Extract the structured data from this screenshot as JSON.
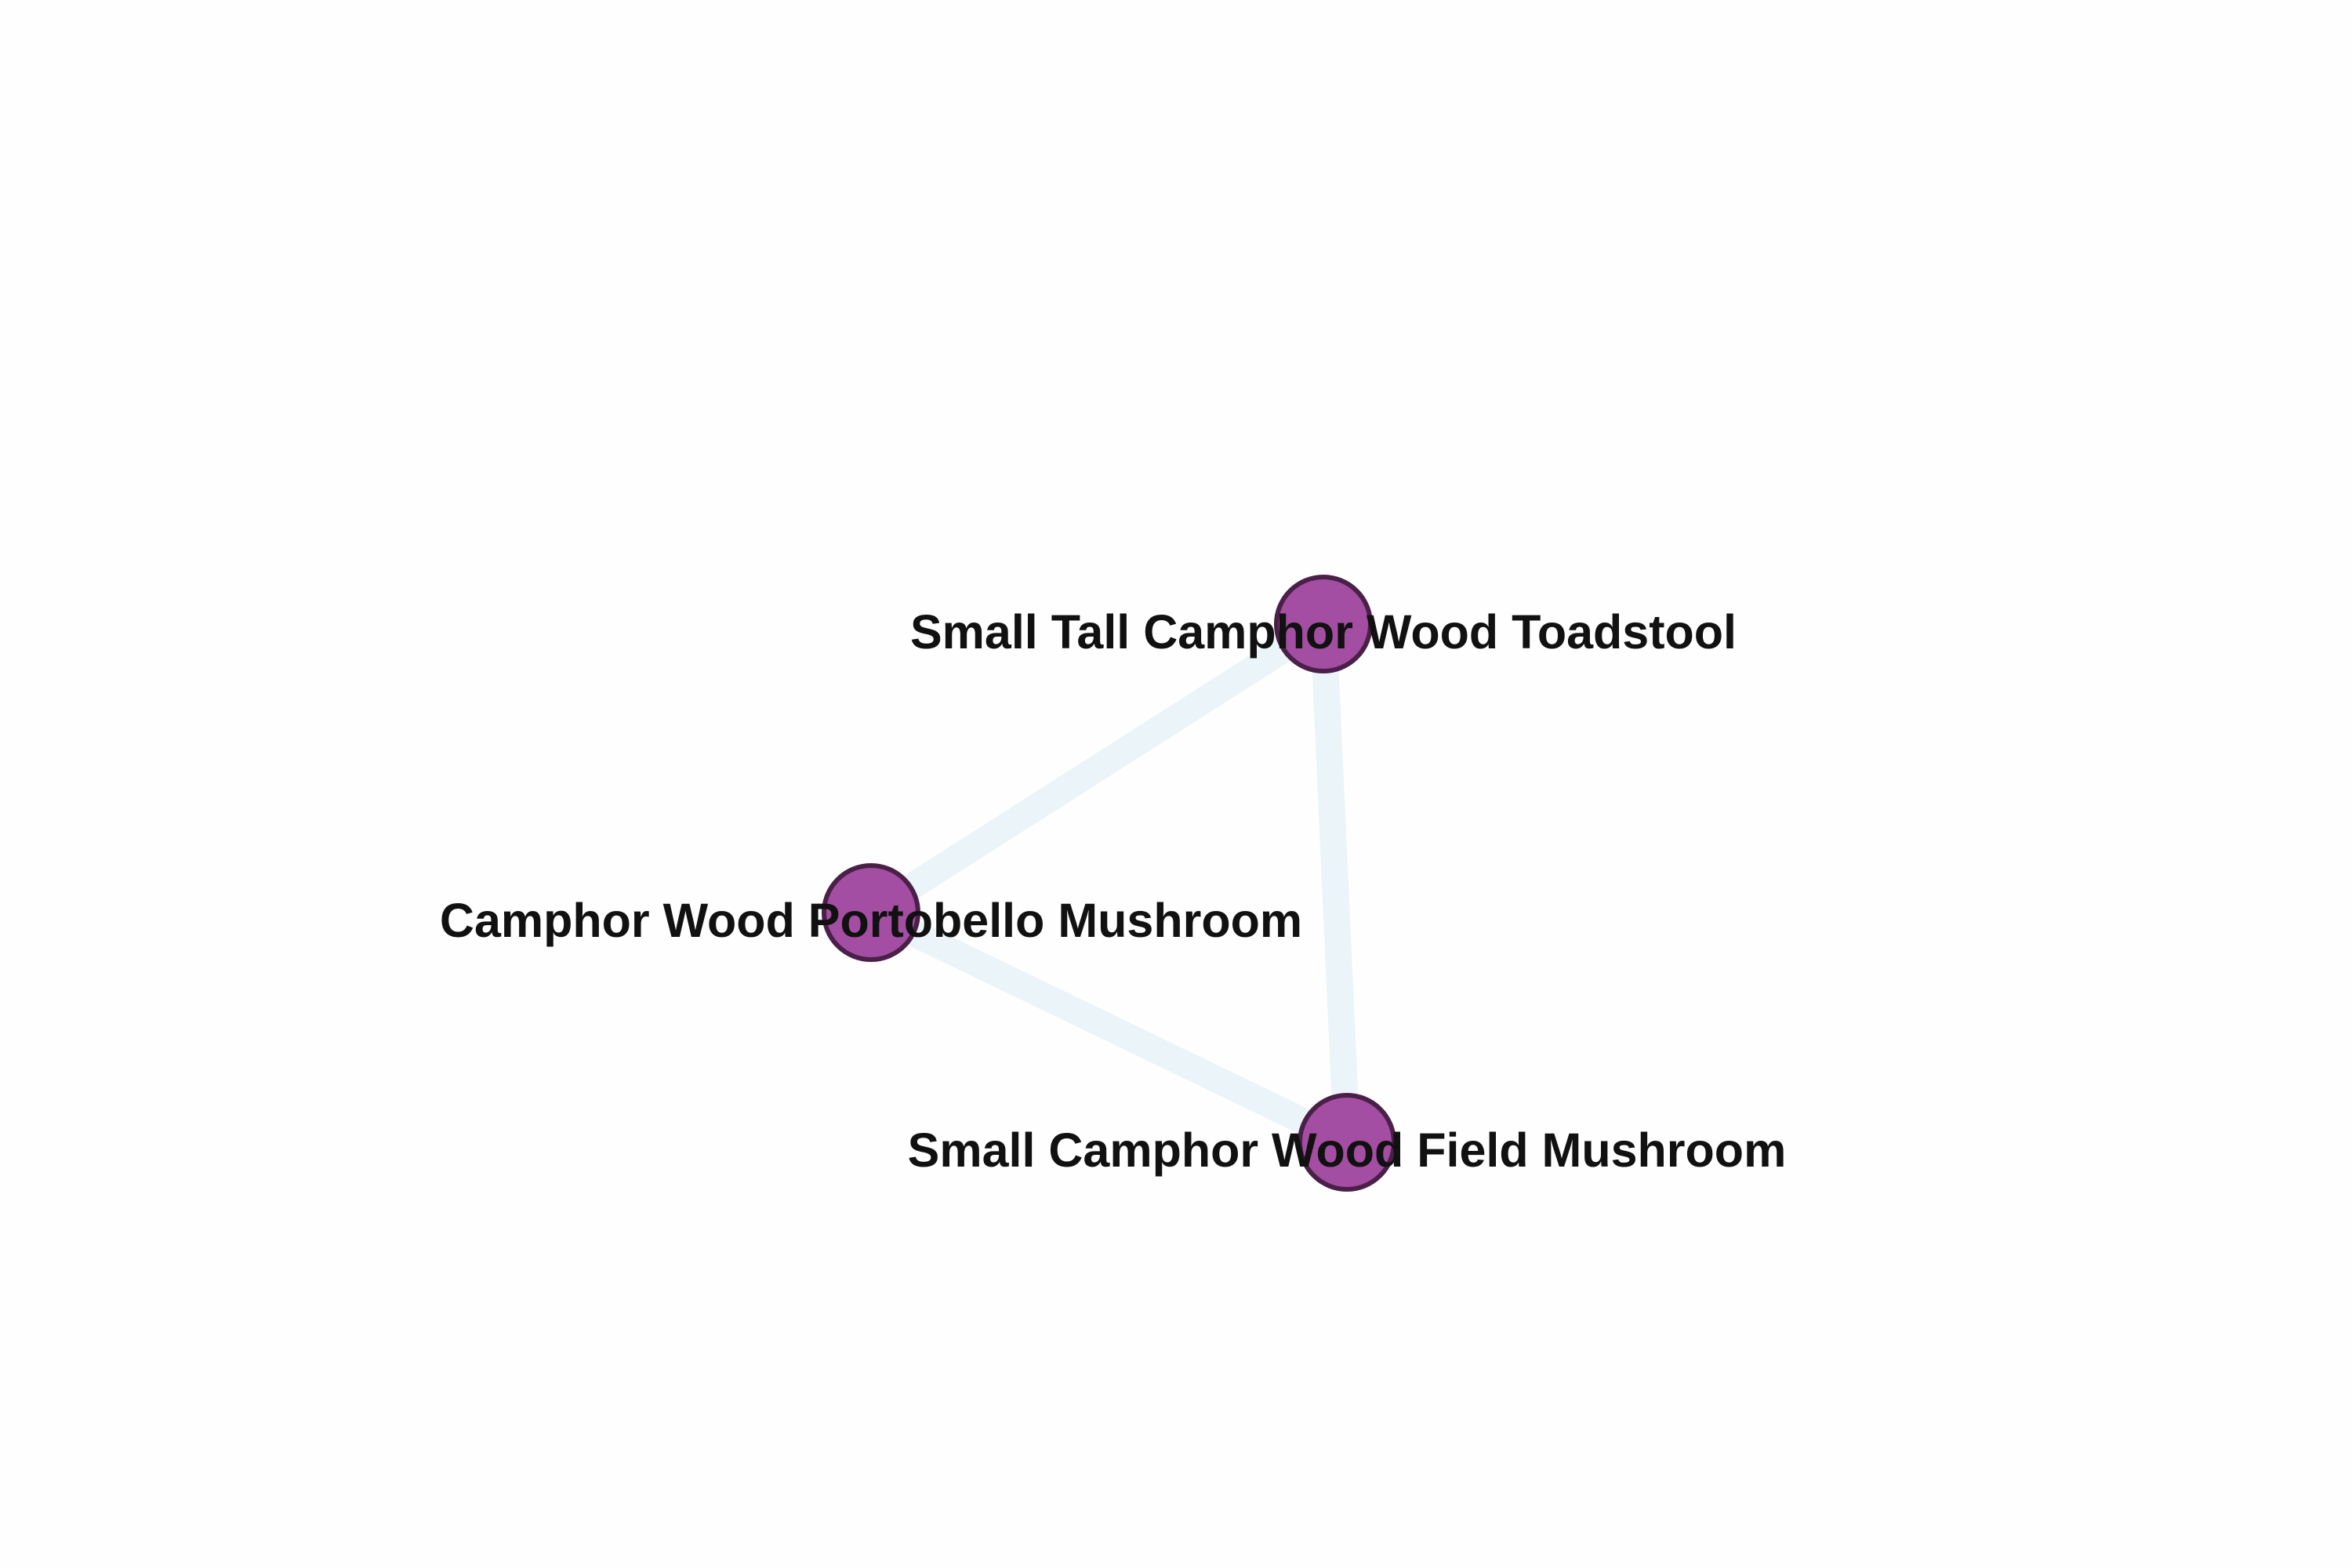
{
  "diagram": {
    "type": "network-graph",
    "style": {
      "node_fill": "#a34ea2",
      "node_stroke": "#4a2048",
      "edge_color": "#ebf5f9",
      "label_color": "#111111",
      "background": "#fefefe"
    },
    "nodes": [
      {
        "id": "toadstool",
        "label": "Small Tall Camphor Wood Toadstool"
      },
      {
        "id": "portobello",
        "label": "Camphor Wood Portobello Mushroom"
      },
      {
        "id": "field",
        "label": "Small Camphor Wood Field Mushroom"
      }
    ],
    "edges": [
      {
        "source": "toadstool",
        "target": "portobello"
      },
      {
        "source": "toadstool",
        "target": "field"
      },
      {
        "source": "portobello",
        "target": "field"
      }
    ]
  }
}
